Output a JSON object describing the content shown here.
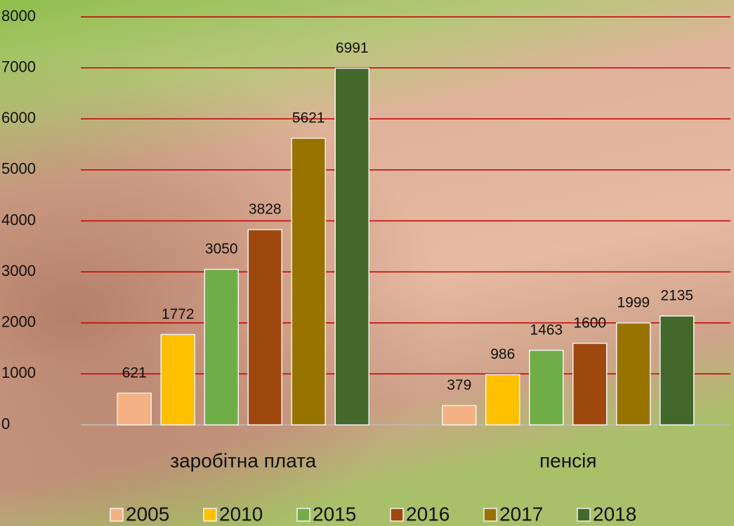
{
  "chart_data": {
    "type": "bar",
    "categories": [
      "заробітна плата",
      "пенсія"
    ],
    "series": [
      {
        "name": "2005",
        "color": "#f4b183",
        "values": [
          621,
          379
        ]
      },
      {
        "name": "2010",
        "color": "#ffc000",
        "values": [
          1772,
          986
        ]
      },
      {
        "name": "2015",
        "color": "#70ad47",
        "values": [
          3050,
          1463
        ]
      },
      {
        "name": "2016",
        "color": "#9e480e",
        "values": [
          3828,
          1600
        ]
      },
      {
        "name": "2017",
        "color": "#997300",
        "values": [
          5621,
          1999
        ]
      },
      {
        "name": "2018",
        "color": "#43682b",
        "values": [
          6991,
          2135
        ]
      }
    ],
    "ylim": [
      0,
      8000
    ],
    "yticks": [
      0,
      1000,
      2000,
      3000,
      4000,
      5000,
      6000,
      7000,
      8000
    ],
    "grid": true,
    "grid_color": "#c00000",
    "legend": "bottom"
  }
}
